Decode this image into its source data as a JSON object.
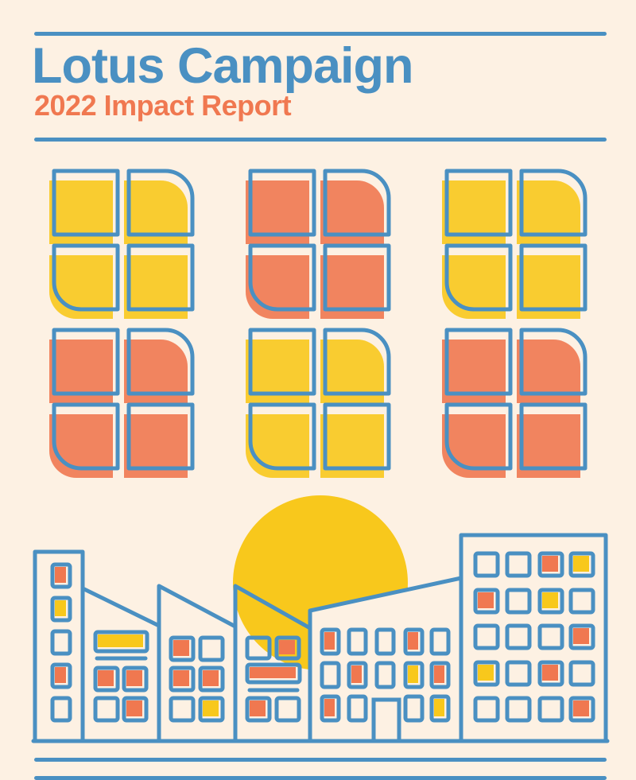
{
  "header": {
    "title": "Lotus Campaign",
    "subtitle": "2022 Impact Report"
  },
  "colors": {
    "background": "#fdf1e3",
    "blue": "#4a90c2",
    "orange": "#f07850",
    "yellow": "#f8c81c"
  }
}
